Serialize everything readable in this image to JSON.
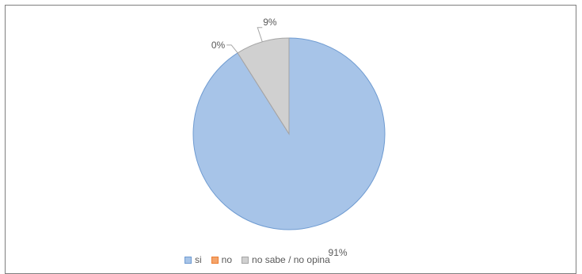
{
  "chart_data": {
    "type": "pie",
    "categories": [
      "si",
      "no",
      "no sabe / no opina"
    ],
    "values": [
      91,
      0,
      9
    ],
    "data_labels": [
      "91%",
      "0%",
      "9%"
    ],
    "colors": [
      "#a7c4e8",
      "#f4a46b",
      "#d0d0d0"
    ],
    "stroke_colors": [
      "#6f9bd1",
      "#ed7d31",
      "#a5a5a5"
    ],
    "legend": {
      "position": "bottom"
    }
  }
}
